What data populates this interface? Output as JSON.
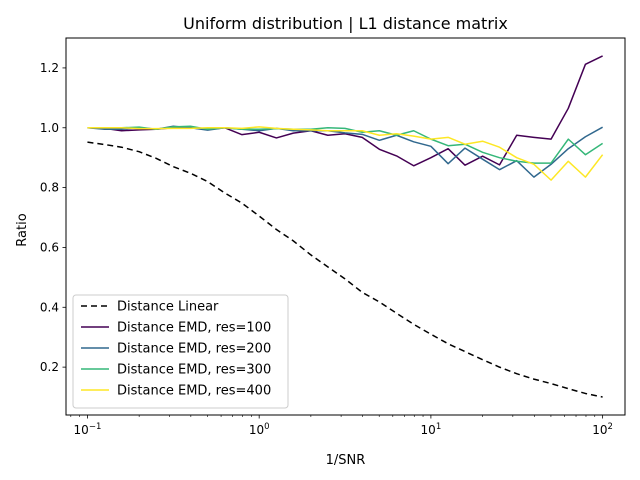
{
  "chart_data": {
    "type": "line",
    "title": "Uniform distribution | L1 distance matrix",
    "xlabel": "1/SNR",
    "ylabel": "Ratio",
    "xscale": "log",
    "xlim": [
      0.075,
      135
    ],
    "ylim": [
      0.04,
      1.3
    ],
    "xticks": [
      {
        "value": 0.1,
        "base": "10",
        "exp": "−1"
      },
      {
        "value": 1,
        "base": "10",
        "exp": "0"
      },
      {
        "value": 10,
        "base": "10",
        "exp": "1"
      },
      {
        "value": 100,
        "base": "10",
        "exp": "2"
      }
    ],
    "yticks": [
      0.2,
      0.4,
      0.6,
      0.8,
      1.0,
      1.2
    ],
    "ytick_labels": [
      "0.2",
      "0.4",
      "0.6",
      "0.8",
      "1.0",
      "1.2"
    ],
    "grid": false,
    "legend_position": "lower-left",
    "x": [
      0.1,
      0.126,
      0.158,
      0.2,
      0.251,
      0.316,
      0.398,
      0.501,
      0.631,
      0.794,
      1.0,
      1.26,
      1.58,
      2.0,
      2.51,
      3.16,
      3.98,
      5.01,
      6.31,
      7.94,
      10.0,
      12.6,
      15.8,
      20.0,
      25.1,
      31.6,
      39.8,
      50.1,
      63.1,
      79.4,
      100.0
    ],
    "series": [
      {
        "name": "Distance Linear",
        "color": "#000000",
        "dash": "6,4",
        "values": [
          0.952,
          0.944,
          0.935,
          0.92,
          0.898,
          0.87,
          0.848,
          0.82,
          0.782,
          0.748,
          0.705,
          0.66,
          0.622,
          0.575,
          0.535,
          0.495,
          0.45,
          0.418,
          0.38,
          0.343,
          0.31,
          0.278,
          0.252,
          0.225,
          0.2,
          0.178,
          0.16,
          0.145,
          0.128,
          0.112,
          0.1
        ]
      },
      {
        "name": "Distance EMD, res=100",
        "color": "#440154",
        "dash": "",
        "values": [
          1.0,
          0.998,
          0.99,
          0.993,
          0.995,
          1.0,
          1.0,
          0.994,
          1.0,
          0.977,
          0.985,
          0.966,
          0.982,
          0.99,
          0.975,
          0.98,
          0.968,
          0.928,
          0.906,
          0.873,
          0.9,
          0.93,
          0.875,
          0.905,
          0.876,
          0.975,
          0.968,
          0.962,
          1.065,
          1.212,
          1.24
        ]
      },
      {
        "name": "Distance EMD, res=200",
        "color": "#31688e",
        "dash": "",
        "values": [
          1.0,
          0.995,
          0.995,
          1.0,
          0.995,
          1.005,
          1.0,
          0.992,
          1.0,
          0.995,
          0.99,
          0.998,
          0.99,
          0.99,
          0.99,
          0.983,
          0.978,
          0.958,
          0.975,
          0.953,
          0.938,
          0.88,
          0.932,
          0.895,
          0.86,
          0.89,
          0.835,
          0.878,
          0.93,
          0.97,
          1.002
        ]
      },
      {
        "name": "Distance EMD, res=300",
        "color": "#35b779",
        "dash": "",
        "values": [
          1.0,
          1.0,
          1.0,
          1.002,
          0.995,
          1.003,
          1.005,
          0.995,
          1.0,
          0.995,
          0.995,
          0.997,
          0.995,
          0.995,
          1.0,
          0.998,
          0.985,
          0.99,
          0.975,
          0.99,
          0.962,
          0.94,
          0.945,
          0.918,
          0.9,
          0.888,
          0.882,
          0.882,
          0.962,
          0.91,
          0.948
        ]
      },
      {
        "name": "Distance EMD, res=400",
        "color": "#fde725",
        "dash": "",
        "values": [
          1.0,
          1.0,
          1.0,
          0.997,
          0.997,
          0.998,
          0.998,
          1.0,
          1.0,
          0.998,
          1.003,
          0.998,
          0.995,
          0.993,
          0.99,
          0.99,
          0.99,
          0.975,
          0.98,
          0.972,
          0.962,
          0.968,
          0.945,
          0.955,
          0.935,
          0.9,
          0.878,
          0.825,
          0.888,
          0.835,
          0.91
        ]
      }
    ]
  }
}
